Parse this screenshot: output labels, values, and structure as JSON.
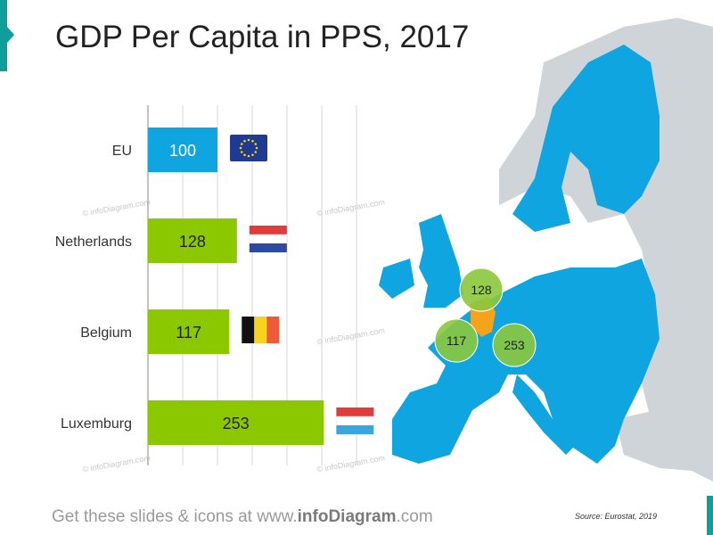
{
  "title": "GDP Per Capita in PPS, 2017",
  "footer": {
    "prefix": "Get these slides & icons at www.",
    "brand": "infoDiagram",
    "suffix": ".com"
  },
  "source": "Source: Eurostat, 2019",
  "watermark": "© infoDiagram.com",
  "colors": {
    "eu_bar": "#0ea5e0",
    "country_bar": "#8cc800",
    "map_eu": "#0ea5e0",
    "map_non_eu": "#cfd4d9",
    "highlight": "#f5a31a",
    "bubble": "#8cc83c"
  },
  "chart_data": {
    "type": "bar",
    "orientation": "horizontal",
    "categories": [
      "EU",
      "Netherlands",
      "Belgium",
      "Luxemburg"
    ],
    "values": [
      100,
      128,
      117,
      253
    ],
    "title": "GDP Per Capita in PPS, 2017",
    "xlabel": "",
    "ylabel": "",
    "xlim": [
      0,
      300
    ],
    "grid": true,
    "flags": [
      "eu-flag-icon",
      "netherlands-flag-icon",
      "belgium-flag-icon",
      "luxemburg-flag-icon"
    ]
  },
  "map": {
    "bubbles": [
      {
        "label": "128"
      },
      {
        "label": "117"
      },
      {
        "label": "253"
      }
    ]
  }
}
